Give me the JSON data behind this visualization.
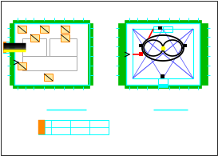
{
  "bg_color": "#ffffff",
  "cyan": "#00ffff",
  "green": "#00bb00",
  "orange": "#ff8800",
  "red": "#ff0000",
  "yellow": "#ffff00",
  "black": "#000000",
  "gray": "#aaaaaa",
  "blue": "#4444ff",
  "darkblue": "#0000cc"
}
